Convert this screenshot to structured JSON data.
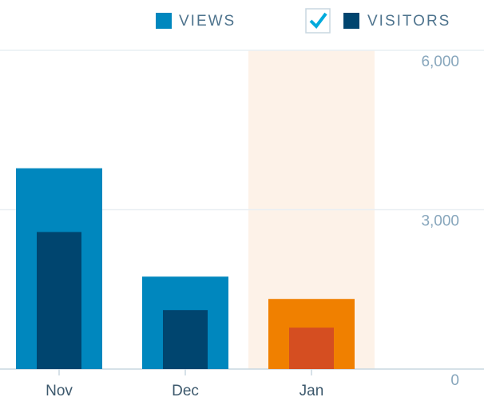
{
  "chart_data": {
    "type": "bar",
    "categories": [
      "Nov",
      "Dec",
      "Jan"
    ],
    "series": [
      {
        "name": "VIEWS",
        "color": "#0087be",
        "highlight_color": "#f08000",
        "values": [
          3780,
          1740,
          1320
        ]
      },
      {
        "name": "VISITORS",
        "color": "#00456f",
        "highlight_color": "#d54e21",
        "values": [
          2580,
          1110,
          780
        ]
      }
    ],
    "highlight_index": 2,
    "highlight_background": "#fdf2e8",
    "ylim": [
      0,
      6000
    ],
    "yticks": [
      0,
      {
        "value": 3000,
        "label": "3,000"
      },
      {
        "value": 6000,
        "label": "6,000"
      }
    ],
    "grid": true
  }
}
